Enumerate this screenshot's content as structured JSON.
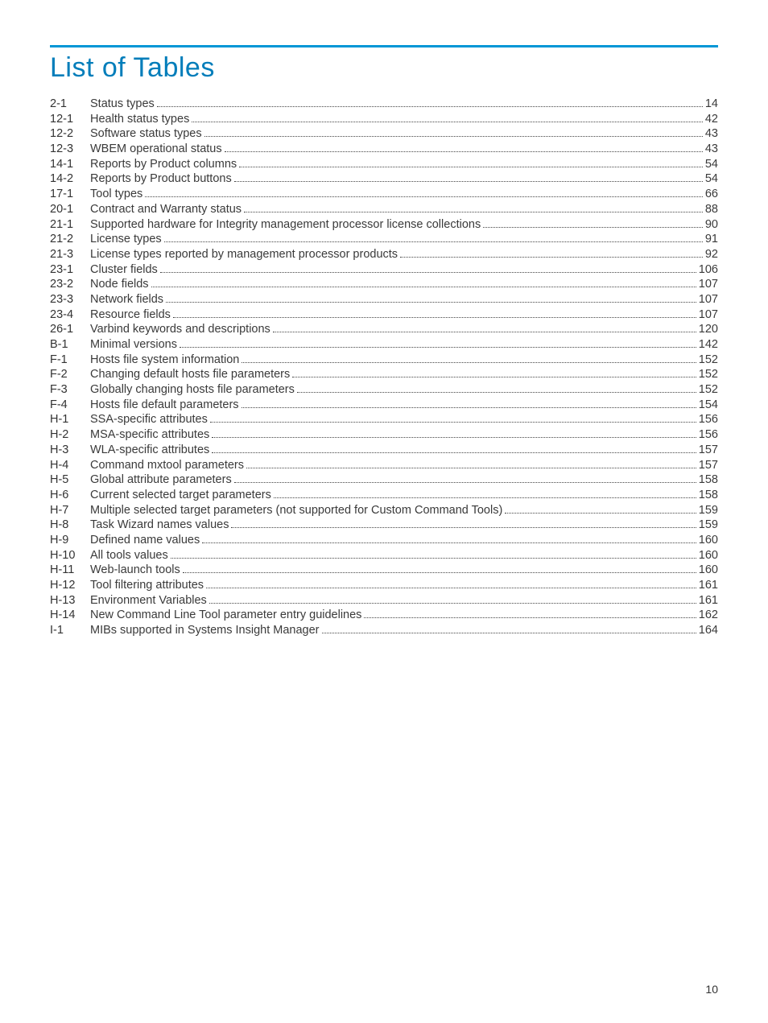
{
  "title": "List of Tables",
  "accent_color": "#0096d6",
  "title_color": "#007dba",
  "entries": [
    {
      "num": "2-1",
      "label": "Status types",
      "page": "14"
    },
    {
      "num": "12-1",
      "label": "Health status types",
      "page": "42"
    },
    {
      "num": "12-2",
      "label": "Software status types",
      "page": "43"
    },
    {
      "num": "12-3",
      "label": "WBEM operational status",
      "page": "43"
    },
    {
      "num": "14-1",
      "label": "Reports by Product columns",
      "page": "54"
    },
    {
      "num": "14-2",
      "label": "Reports by Product buttons",
      "page": "54"
    },
    {
      "num": "17-1",
      "label": "Tool types",
      "page": "66"
    },
    {
      "num": "20-1",
      "label": "Contract and Warranty status",
      "page": "88"
    },
    {
      "num": "21-1",
      "label": "Supported hardware for Integrity management processor license collections",
      "page": "90"
    },
    {
      "num": "21-2",
      "label": "License types",
      "page": "91"
    },
    {
      "num": "21-3",
      "label": "License types reported by management processor products",
      "page": "92"
    },
    {
      "num": "23-1",
      "label": "Cluster fields",
      "page": "106"
    },
    {
      "num": "23-2",
      "label": "Node fields",
      "page": "107"
    },
    {
      "num": "23-3",
      "label": "Network fields",
      "page": "107"
    },
    {
      "num": "23-4",
      "label": "Resource fields",
      "page": "107"
    },
    {
      "num": "26-1",
      "label": "Varbind keywords and descriptions",
      "page": "120"
    },
    {
      "num": "B-1",
      "label": "Minimal versions",
      "page": "142"
    },
    {
      "num": "F-1",
      "label": "Hosts file system information",
      "page": "152"
    },
    {
      "num": "F-2",
      "label": "Changing default hosts file parameters",
      "page": "152"
    },
    {
      "num": "F-3",
      "label": "Globally changing hosts file parameters",
      "page": "152"
    },
    {
      "num": "F-4",
      "label": "Hosts file default parameters",
      "page": "154"
    },
    {
      "num": "H-1",
      "label": "SSA-specific attributes",
      "page": "156"
    },
    {
      "num": "H-2",
      "label": "MSA-specific attributes",
      "page": "156"
    },
    {
      "num": "H-3",
      "label": "WLA-specific attributes",
      "page": "157"
    },
    {
      "num": "H-4",
      "label": "Command mxtool parameters",
      "page": "157"
    },
    {
      "num": "H-5",
      "label": "Global attribute parameters",
      "page": "158"
    },
    {
      "num": "H-6",
      "label": "Current selected target parameters",
      "page": "158"
    },
    {
      "num": "H-7",
      "label": "Multiple selected target parameters (not supported for Custom Command Tools)",
      "page": "159"
    },
    {
      "num": "H-8",
      "label": "Task Wizard names values",
      "page": "159"
    },
    {
      "num": "H-9",
      "label": "Defined name values",
      "page": "160"
    },
    {
      "num": "H-10",
      "label": "All tools values",
      "page": "160"
    },
    {
      "num": "H-11",
      "label": "Web-launch tools",
      "page": "160"
    },
    {
      "num": "H-12",
      "label": "Tool filtering attributes",
      "page": "161"
    },
    {
      "num": "H-13",
      "label": "Environment Variables",
      "page": "161"
    },
    {
      "num": "H-14",
      "label": "New Command Line Tool parameter entry guidelines",
      "page": "162"
    },
    {
      "num": "I-1",
      "label": "MIBs supported in Systems Insight Manager",
      "page": "164"
    }
  ],
  "page_number": "10"
}
